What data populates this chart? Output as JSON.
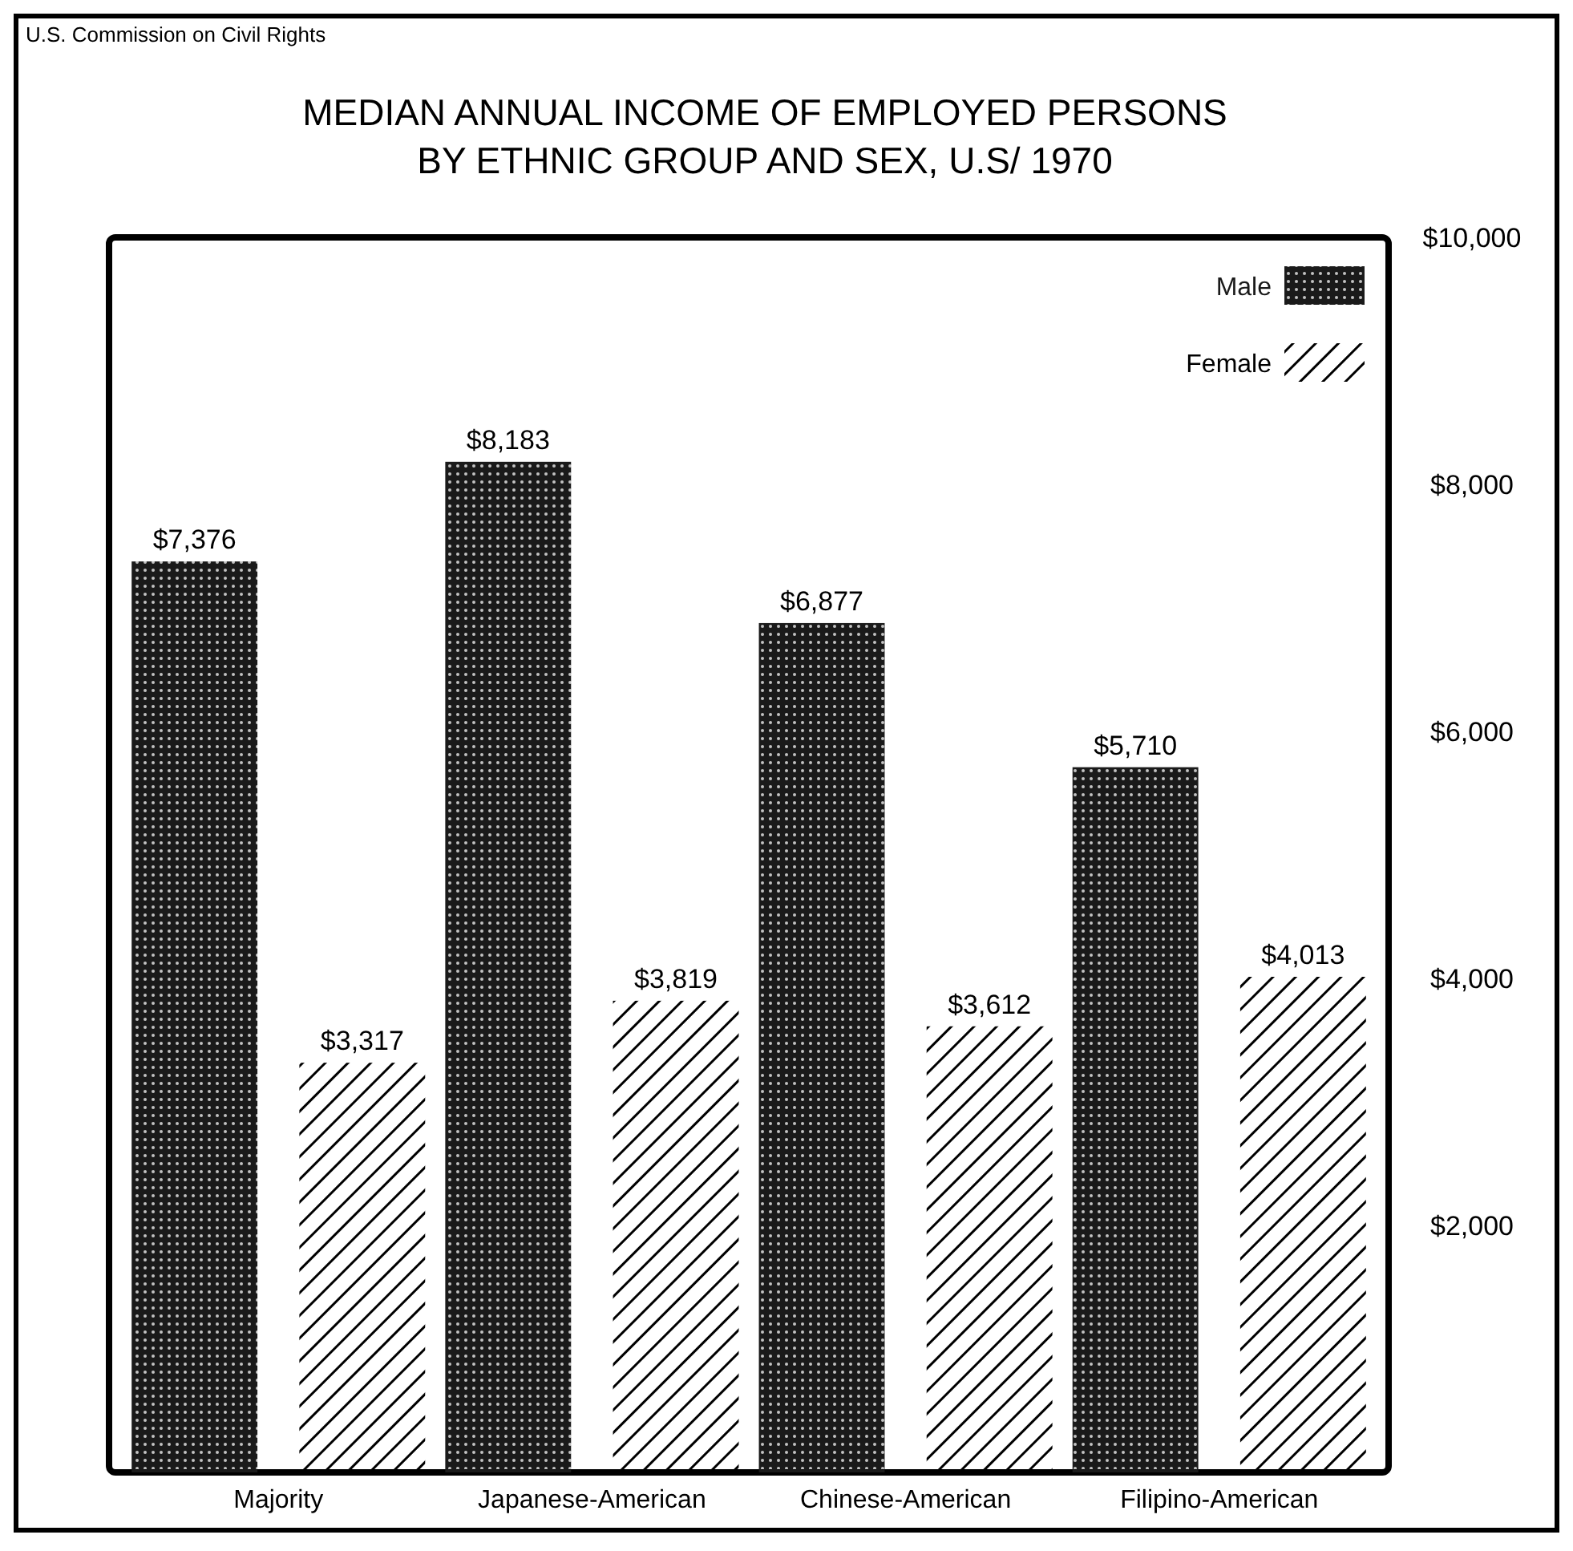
{
  "chart_data": {
    "type": "bar",
    "title": "MEDIAN ANNUAL INCOME OF EMPLOYED PERSONS\nBY ETHNIC GROUP AND SEX,  U.S/ 1970",
    "annotations": [
      "U.S. Commission on Civil Rights"
    ],
    "categories": [
      "Majority",
      "Japanese-American",
      "Chinese-American",
      "Filipino-American"
    ],
    "series": [
      {
        "name": "Male",
        "color": "#1a1a1a",
        "values": [
          7376,
          8183,
          6877,
          5710
        ],
        "value_labels": [
          "$7,376",
          "$8,183",
          "$6,877",
          "$5,710"
        ]
      },
      {
        "name": "Female",
        "color": "#000000",
        "values": [
          3317,
          3819,
          3612,
          4013
        ],
        "value_labels": [
          "$3,317",
          "$3,819",
          "$3,612",
          "$4,013"
        ]
      }
    ],
    "ylim": [
      0,
      10000
    ],
    "yticks": [
      {
        "value": 2000,
        "label": "$2,000"
      },
      {
        "value": 4000,
        "label": "$4,000"
      },
      {
        "value": 6000,
        "label": "$6,000"
      },
      {
        "value": 8000,
        "label": "$8,000"
      },
      {
        "value": 10000,
        "label": "$10,000"
      }
    ],
    "grid": false,
    "legend": "top right"
  }
}
